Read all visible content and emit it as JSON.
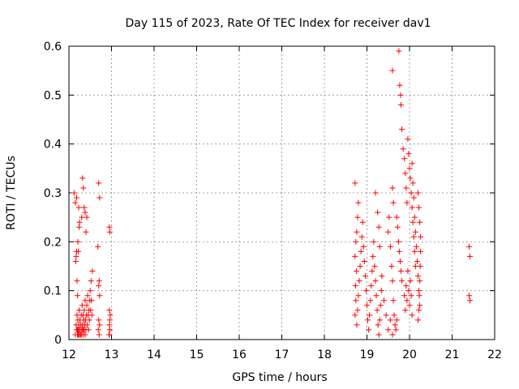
{
  "chart_data": {
    "type": "scatter",
    "title": "Day 115 of 2023, Rate Of TEC Index for receiver dav1",
    "xlabel": "GPS time / hours",
    "ylabel": "ROTI / TECUs",
    "xlim": [
      12,
      22
    ],
    "ylim": [
      0,
      0.6
    ],
    "xticks": [
      "12",
      "13",
      "14",
      "15",
      "16",
      "17",
      "18",
      "19",
      "20",
      "21",
      "22"
    ],
    "yticks": [
      "0",
      "0.1",
      "0.2",
      "0.3",
      "0.4",
      "0.5",
      "0.6"
    ],
    "grid": true,
    "marker": "+",
    "marker_color": "#ff0000",
    "series": [
      {
        "points": [
          [
            12.15,
            0.01
          ],
          [
            12.17,
            0.03
          ],
          [
            12.18,
            0.02
          ],
          [
            12.19,
            0.05
          ],
          [
            12.2,
            0.02
          ],
          [
            12.21,
            0.04
          ],
          [
            12.22,
            0.01
          ],
          [
            12.23,
            0.03
          ],
          [
            12.24,
            0.06
          ],
          [
            12.25,
            0.02
          ],
          [
            12.26,
            0.04
          ],
          [
            12.27,
            0.01
          ],
          [
            12.28,
            0.03
          ],
          [
            12.29,
            0.05
          ],
          [
            12.3,
            0.02
          ],
          [
            12.31,
            0.07
          ],
          [
            12.32,
            0.03
          ],
          [
            12.33,
            0.05
          ],
          [
            12.34,
            0.02
          ],
          [
            12.35,
            0.04
          ],
          [
            12.36,
            0.06
          ],
          [
            12.37,
            0.03
          ],
          [
            12.38,
            0.08
          ],
          [
            12.39,
            0.04
          ],
          [
            12.4,
            0.02
          ],
          [
            12.41,
            0.05
          ],
          [
            12.42,
            0.07
          ],
          [
            12.43,
            0.03
          ],
          [
            12.44,
            0.09
          ],
          [
            12.45,
            0.05
          ],
          [
            12.46,
            0.02
          ],
          [
            12.47,
            0.06
          ],
          [
            12.48,
            0.04
          ],
          [
            12.49,
            0.08
          ],
          [
            12.5,
            0.1
          ],
          [
            12.51,
            0.06
          ],
          [
            12.52,
            0.12
          ],
          [
            12.53,
            0.08
          ],
          [
            12.54,
            0.05
          ],
          [
            12.55,
            0.14
          ],
          [
            12.16,
            0.16
          ],
          [
            12.17,
            0.17
          ],
          [
            12.18,
            0.18
          ],
          [
            12.19,
            0.12
          ],
          [
            12.2,
            0.09
          ],
          [
            12.21,
            0.2
          ],
          [
            12.22,
            0.18
          ],
          [
            12.23,
            0.27
          ],
          [
            12.24,
            0.23
          ],
          [
            12.25,
            0.24
          ],
          [
            12.12,
            0.3
          ],
          [
            12.15,
            0.28
          ],
          [
            12.18,
            0.29
          ],
          [
            12.3,
            0.25
          ],
          [
            12.32,
            0.33
          ],
          [
            12.34,
            0.31
          ],
          [
            12.36,
            0.27
          ],
          [
            12.38,
            0.26
          ],
          [
            12.4,
            0.22
          ],
          [
            12.42,
            0.25
          ],
          [
            12.7,
            0.32
          ],
          [
            12.72,
            0.29
          ],
          [
            12.68,
            0.19
          ],
          [
            12.7,
            0.11
          ],
          [
            12.71,
            0.12
          ],
          [
            12.72,
            0.09
          ],
          [
            12.7,
            0.04
          ],
          [
            12.72,
            0.03
          ],
          [
            12.69,
            0.02
          ],
          [
            12.71,
            0.01
          ],
          [
            12.95,
            0.23
          ],
          [
            12.96,
            0.22
          ],
          [
            12.95,
            0.06
          ],
          [
            12.96,
            0.04
          ],
          [
            12.95,
            0.03
          ],
          [
            12.96,
            0.02
          ],
          [
            12.95,
            0.01
          ],
          [
            12.97,
            0.05
          ],
          [
            12.94,
            0.01
          ],
          [
            12.96,
            0.02
          ],
          [
            12.2,
            0.01
          ],
          [
            12.22,
            0.02
          ],
          [
            12.24,
            0.01
          ],
          [
            12.26,
            0.02
          ],
          [
            12.28,
            0.01
          ],
          [
            12.3,
            0.01
          ],
          [
            12.32,
            0.02
          ],
          [
            12.34,
            0.01
          ],
          [
            12.36,
            0.02
          ],
          [
            12.38,
            0.01
          ],
          [
            18.72,
            0.32
          ],
          [
            18.8,
            0.28
          ],
          [
            18.78,
            0.25
          ],
          [
            18.76,
            0.22
          ],
          [
            18.74,
            0.2
          ],
          [
            18.72,
            0.17
          ],
          [
            18.75,
            0.14
          ],
          [
            18.73,
            0.11
          ],
          [
            18.74,
            0.08
          ],
          [
            18.72,
            0.05
          ],
          [
            18.76,
            0.03
          ],
          [
            18.78,
            0.06
          ],
          [
            18.8,
            0.09
          ],
          [
            18.82,
            0.12
          ],
          [
            18.84,
            0.15
          ],
          [
            18.86,
            0.18
          ],
          [
            18.88,
            0.21
          ],
          [
            18.9,
            0.24
          ],
          [
            18.92,
            0.19
          ],
          [
            18.94,
            0.16
          ],
          [
            18.96,
            0.13
          ],
          [
            18.98,
            0.1
          ],
          [
            19.0,
            0.07
          ],
          [
            19.02,
            0.04
          ],
          [
            19.04,
            0.02
          ],
          [
            19.06,
            0.05
          ],
          [
            19.08,
            0.08
          ],
          [
            19.1,
            0.11
          ],
          [
            19.12,
            0.14
          ],
          [
            19.14,
            0.17
          ],
          [
            19.16,
            0.2
          ],
          [
            19.18,
            0.15
          ],
          [
            19.2,
            0.12
          ],
          [
            19.22,
            0.09
          ],
          [
            19.24,
            0.06
          ],
          [
            19.26,
            0.03
          ],
          [
            19.28,
            0.01
          ],
          [
            19.3,
            0.04
          ],
          [
            19.32,
            0.07
          ],
          [
            19.34,
            0.1
          ],
          [
            19.2,
            0.3
          ],
          [
            19.25,
            0.26
          ],
          [
            19.28,
            0.23
          ],
          [
            19.3,
            0.19
          ],
          [
            19.35,
            0.13
          ],
          [
            19.4,
            0.08
          ],
          [
            19.45,
            0.05
          ],
          [
            19.5,
            0.02
          ],
          [
            19.55,
            0.04
          ],
          [
            19.6,
            0.01
          ],
          [
            19.5,
            0.22
          ],
          [
            19.52,
            0.25
          ],
          [
            19.55,
            0.19
          ],
          [
            19.58,
            0.15
          ],
          [
            19.6,
            0.12
          ],
          [
            19.62,
            0.08
          ],
          [
            19.64,
            0.05
          ],
          [
            19.66,
            0.03
          ],
          [
            19.68,
            0.02
          ],
          [
            19.7,
            0.04
          ],
          [
            19.6,
            0.55
          ],
          [
            19.6,
            0.31
          ],
          [
            19.62,
            0.28
          ],
          [
            19.7,
            0.25
          ],
          [
            19.72,
            0.23
          ],
          [
            19.74,
            0.2
          ],
          [
            19.76,
            0.18
          ],
          [
            19.78,
            0.16
          ],
          [
            19.8,
            0.14
          ],
          [
            19.82,
            0.12
          ],
          [
            19.75,
            0.59
          ],
          [
            19.77,
            0.52
          ],
          [
            19.79,
            0.5
          ],
          [
            19.8,
            0.48
          ],
          [
            19.82,
            0.43
          ],
          [
            19.85,
            0.39
          ],
          [
            19.88,
            0.37
          ],
          [
            19.9,
            0.34
          ],
          [
            19.92,
            0.31
          ],
          [
            19.94,
            0.28
          ],
          [
            19.96,
            0.41
          ],
          [
            19.98,
            0.38
          ],
          [
            20.0,
            0.35
          ],
          [
            20.02,
            0.33
          ],
          [
            20.04,
            0.3
          ],
          [
            20.06,
            0.27
          ],
          [
            20.08,
            0.24
          ],
          [
            20.1,
            0.21
          ],
          [
            20.12,
            0.18
          ],
          [
            20.14,
            0.15
          ],
          [
            20.06,
            0.36
          ],
          [
            20.08,
            0.32
          ],
          [
            20.1,
            0.29
          ],
          [
            20.12,
            0.25
          ],
          [
            20.14,
            0.22
          ],
          [
            20.16,
            0.19
          ],
          [
            20.18,
            0.16
          ],
          [
            20.2,
            0.13
          ],
          [
            20.22,
            0.1
          ],
          [
            20.24,
            0.07
          ],
          [
            20.2,
            0.3
          ],
          [
            20.22,
            0.27
          ],
          [
            20.24,
            0.24
          ],
          [
            20.26,
            0.21
          ],
          [
            20.26,
            0.18
          ],
          [
            20.25,
            0.15
          ],
          [
            20.24,
            0.12
          ],
          [
            20.23,
            0.09
          ],
          [
            20.22,
            0.06
          ],
          [
            20.2,
            0.04
          ],
          [
            19.88,
            0.09
          ],
          [
            19.9,
            0.06
          ],
          [
            19.92,
            0.11
          ],
          [
            19.94,
            0.08
          ],
          [
            19.96,
            0.14
          ],
          [
            19.98,
            0.1
          ],
          [
            20.0,
            0.07
          ],
          [
            20.02,
            0.12
          ],
          [
            20.04,
            0.09
          ],
          [
            20.06,
            0.05
          ],
          [
            21.4,
            0.19
          ],
          [
            21.42,
            0.17
          ],
          [
            21.4,
            0.09
          ],
          [
            21.42,
            0.08
          ]
        ]
      }
    ]
  }
}
